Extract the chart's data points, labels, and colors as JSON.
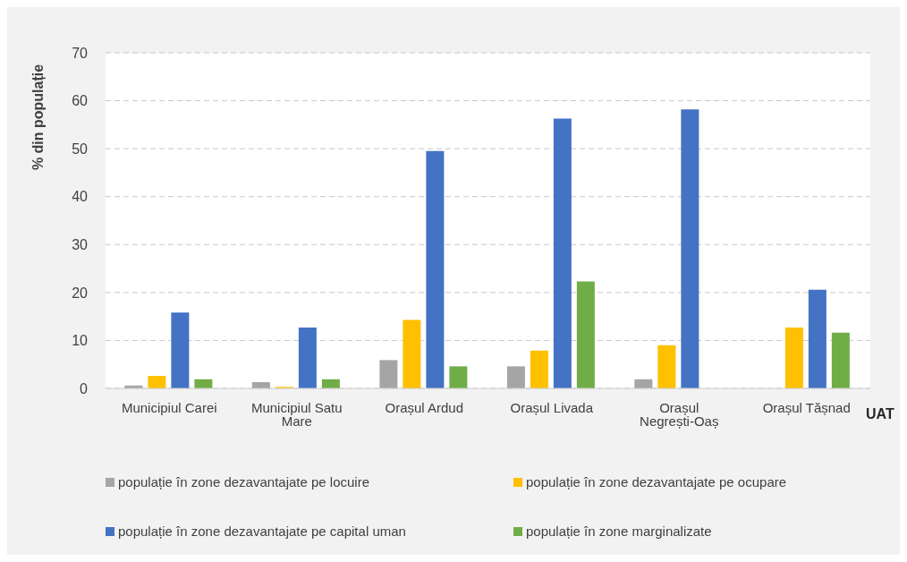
{
  "chart_data": {
    "type": "bar",
    "ylabel": "% din populație",
    "xlabel": "UAT",
    "categories": [
      "Municipiul Carei",
      "Municipiul Satu Mare",
      "Orașul Ardud",
      "Orașul Livada",
      "Orașul Negrești-Oaș",
      "Orașul Tășnad"
    ],
    "series": [
      {
        "name": "populație în zone dezavantajate pe locuire",
        "color": "#a5a5a5",
        "values": [
          0.6,
          1.3,
          5.9,
          4.6,
          1.9,
          null
        ]
      },
      {
        "name": "populație în zone dezavantajate pe ocupare",
        "color": "#ffc000",
        "values": [
          2.6,
          0.3,
          14.3,
          7.9,
          9.0,
          12.7
        ]
      },
      {
        "name": "populație în zone dezavantajate pe capital uman",
        "color": "#4472c4",
        "values": [
          15.8,
          12.7,
          49.5,
          56.3,
          58.2,
          20.6
        ]
      },
      {
        "name": "populație în zone marginalizate",
        "color": "#70ad47",
        "values": [
          1.9,
          1.9,
          4.6,
          22.3,
          null,
          11.6
        ]
      }
    ],
    "ylim": [
      0,
      70
    ],
    "yticks": [
      0,
      10,
      20,
      30,
      40,
      50,
      60,
      70
    ],
    "grid": "y",
    "legend": "bottom"
  }
}
